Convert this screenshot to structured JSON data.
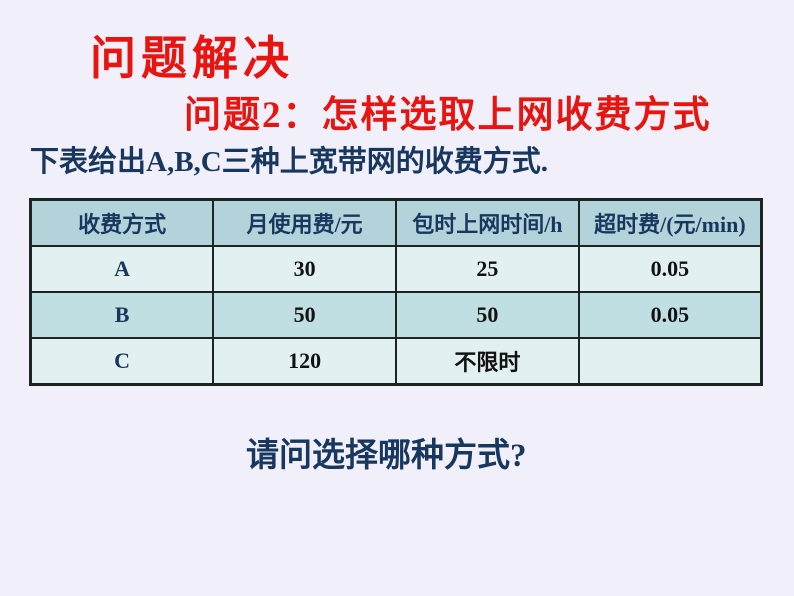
{
  "slide": {
    "title": "问题解决",
    "subtitle": "问题2：怎样选取上网收费方式",
    "intro": "下表给出A,B,C三种上宽带网的收费方式.",
    "question": "请问选择哪种方式?"
  },
  "table": {
    "headers": [
      "收费方式",
      "月使用费/元",
      "包时上网时间/h",
      "超时费/(元/min)"
    ],
    "rows": [
      [
        "A",
        "30",
        "25",
        "0.05"
      ],
      [
        "B",
        "50",
        "50",
        "0.05"
      ],
      [
        "C",
        "120",
        "不限时",
        ""
      ]
    ]
  },
  "colors": {
    "background": "#f0effa",
    "title_red": "#e8140f",
    "text_navy": "#17375e",
    "table_header_bg": "#b3d3da",
    "table_row_light_bg": "#e2f0f1",
    "table_row_dark_bg": "#c0dfe3",
    "table_border": "#1c2424"
  }
}
